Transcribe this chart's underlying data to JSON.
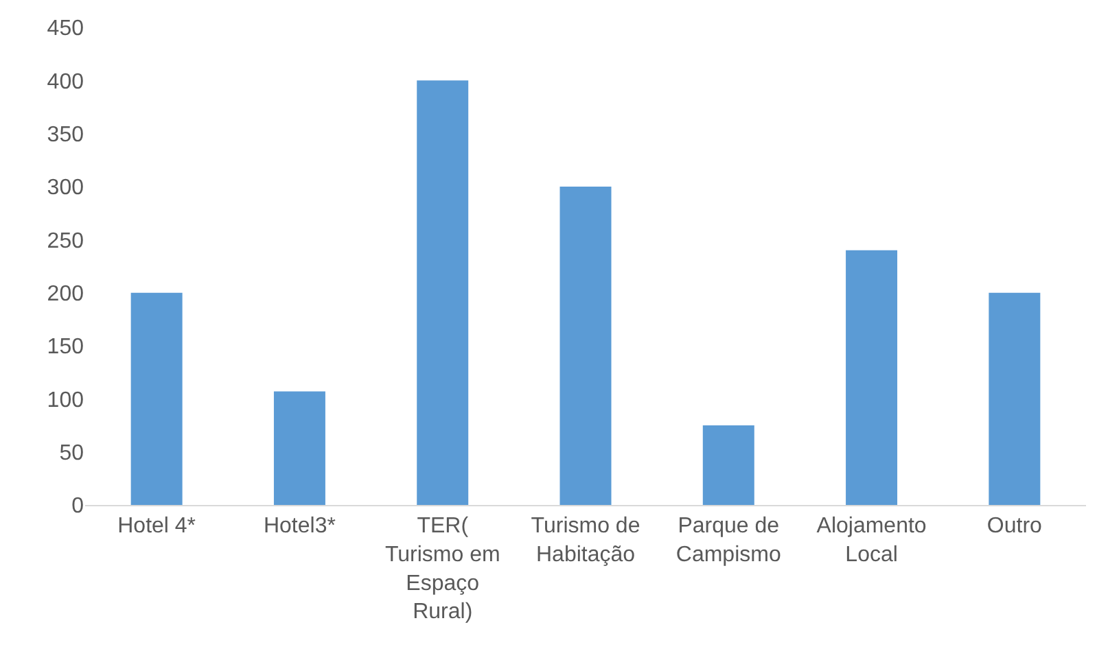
{
  "chart_data": {
    "type": "bar",
    "categories": [
      "Hotel 4*",
      "Hotel3*",
      "TER( Turismo em Espaço Rural)",
      "Turismo de Habitação",
      "Parque de Campismo",
      "Alojamento Local",
      "Outro"
    ],
    "values": [
      200,
      107,
      400,
      300,
      75,
      240,
      200
    ],
    "color": "#5b9bd5",
    "ylim": [
      0,
      450
    ],
    "yticks": [
      0,
      50,
      100,
      150,
      200,
      250,
      300,
      350,
      400,
      450
    ],
    "grid": false
  }
}
